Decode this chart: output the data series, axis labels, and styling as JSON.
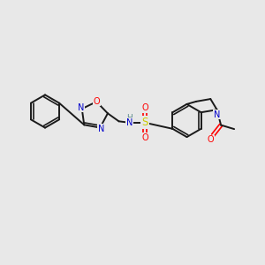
{
  "bg_color": "#e8e8e8",
  "bond_color": "#1a1a1a",
  "N_color": "#0000cc",
  "O_color": "#ff0000",
  "S_color": "#cccc00",
  "H_color": "#5a8a8a",
  "figsize": [
    3.0,
    3.0
  ],
  "dpi": 100,
  "xlim": [
    0,
    10
  ],
  "ylim": [
    0,
    10
  ]
}
